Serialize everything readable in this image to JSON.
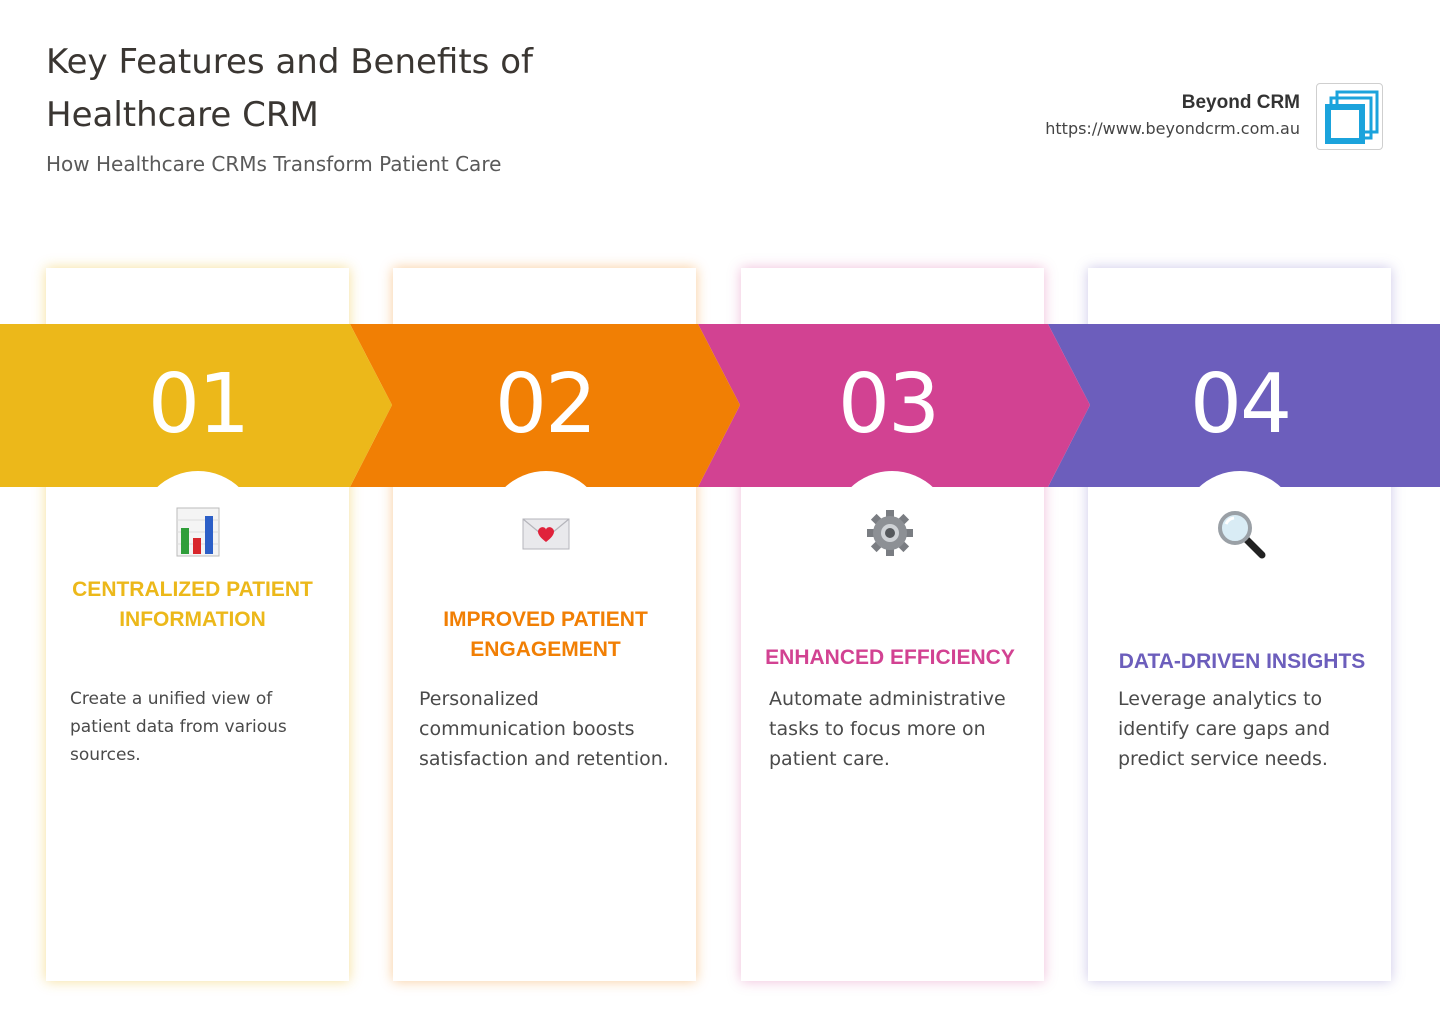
{
  "header": {
    "title": "Key Features and Benefits of Healthcare CRM",
    "subtitle": "How Healthcare CRMs Transform Patient Care"
  },
  "brand": {
    "name": "Beyond CRM",
    "url": "https://www.beyondcrm.com.au",
    "logo_icon": "nested-squares-icon",
    "logo_color": "#1ba3dc"
  },
  "steps": [
    {
      "number": "01",
      "icon": "bar-chart-icon",
      "heading": "CENTRALIZED PATIENT INFORMATION",
      "description": "Create a unified view of patient data from various sources.",
      "color": "#ecb81a"
    },
    {
      "number": "02",
      "icon": "love-letter-icon",
      "heading": "IMPROVED PATIENT ENGAGEMENT",
      "description": "Personalized communication boosts satisfaction and retention.",
      "color": "#f17f04"
    },
    {
      "number": "03",
      "icon": "gear-icon",
      "heading": "ENHANCED EFFICIENCY",
      "description": "Automate administrative tasks to focus more on patient care.",
      "color": "#d24292"
    },
    {
      "number": "04",
      "icon": "magnifying-glass-icon",
      "heading": "DATA-DRIVEN INSIGHTS",
      "description": "Leverage analytics to identify care gaps and predict service needs.",
      "color": "#6c5ebc"
    }
  ]
}
